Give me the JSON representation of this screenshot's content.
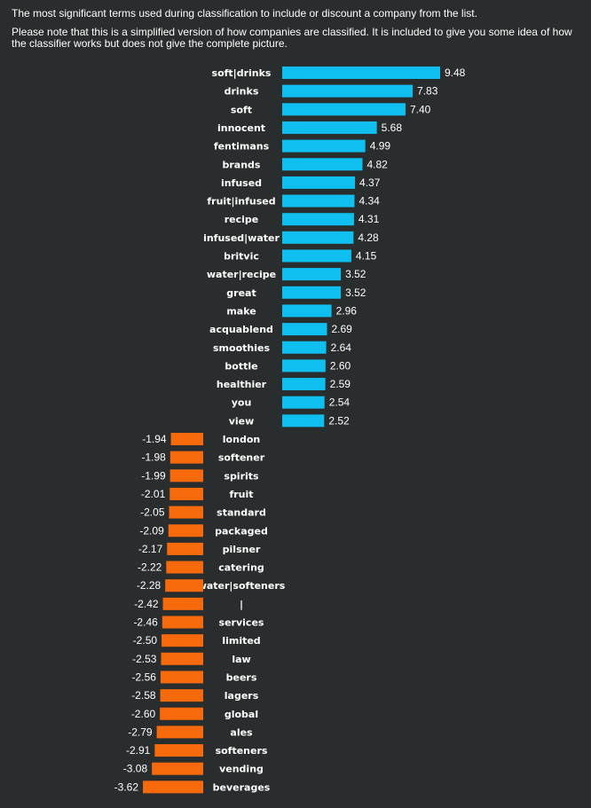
{
  "intro": {
    "line1": "The most significant terms used during classification to include or discount a company from the list.",
    "line2": "Please note that this is a simplified version of how companies are classified. It is included to give you some idea of how the classifier works but does not give the complete picture."
  },
  "colors": {
    "background": "#2a2d2e",
    "positive": "#0fbfef",
    "negative": "#f76a0c",
    "text": "#ffffff"
  },
  "chart_data": {
    "type": "bar",
    "orientation": "horizontal",
    "title": "",
    "xlabel": "",
    "ylabel": "",
    "grid": false,
    "legend": "none",
    "categories": [
      "soft|drinks",
      "drinks",
      "soft",
      "innocent",
      "fentimans",
      "brands",
      "infused",
      "fruit|infused",
      "recipe",
      "infused|water",
      "britvic",
      "water|recipe",
      "great",
      "make",
      "acquablend",
      "smoothies",
      "bottle",
      "healthier",
      "you",
      "view",
      "london",
      "softener",
      "spirits",
      "fruit",
      "standard",
      "packaged",
      "pilsner",
      "catering",
      "water|softeners",
      "|",
      "services",
      "limited",
      "law",
      "beers",
      "lagers",
      "global",
      "ales",
      "softeners",
      "vending",
      "beverages"
    ],
    "values": [
      9.48,
      7.83,
      7.4,
      5.68,
      4.99,
      4.82,
      4.37,
      4.34,
      4.31,
      4.28,
      4.15,
      3.52,
      3.52,
      2.96,
      2.69,
      2.64,
      2.6,
      2.59,
      2.54,
      2.52,
      -1.94,
      -1.98,
      -1.99,
      -2.01,
      -2.05,
      -2.09,
      -2.17,
      -2.22,
      -2.28,
      -2.42,
      -2.46,
      -2.5,
      -2.53,
      -2.56,
      -2.58,
      -2.6,
      -2.79,
      -2.91,
      -3.08,
      -3.62
    ],
    "value_labels": [
      "9.48",
      "7.83",
      "7.40",
      "5.68",
      "4.99",
      "4.82",
      "4.37",
      "4.34",
      "4.31",
      "4.28",
      "4.15",
      "3.52",
      "3.52",
      "2.96",
      "2.69",
      "2.64",
      "2.60",
      "2.59",
      "2.54",
      "2.52",
      "-1.94",
      "-1.98",
      "-1.99",
      "-2.01",
      "-2.05",
      "-2.09",
      "-2.17",
      "-2.22",
      "-2.28",
      "-2.42",
      "-2.46",
      "-2.50",
      "-2.53",
      "-2.56",
      "-2.58",
      "-2.60",
      "-2.79",
      "-2.91",
      "-3.08",
      "-3.62"
    ]
  }
}
